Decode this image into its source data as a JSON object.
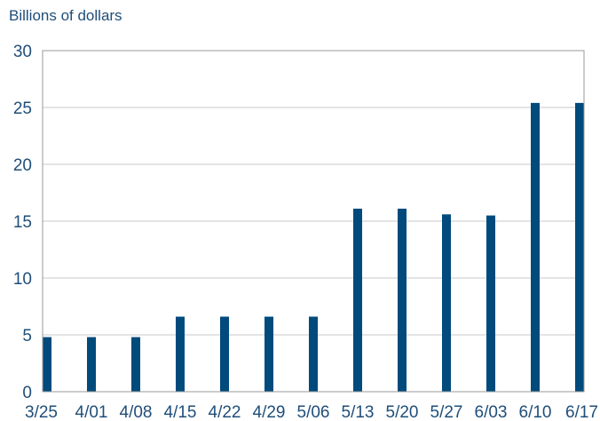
{
  "chart_data": {
    "type": "bar",
    "ylabel": "Billions of dollars",
    "categories": [
      "3/25",
      "4/01",
      "4/08",
      "4/15",
      "4/22",
      "4/29",
      "5/06",
      "5/13",
      "5/20",
      "5/27",
      "6/03",
      "6/10",
      "6/17"
    ],
    "values": [
      4.8,
      4.8,
      4.8,
      6.6,
      6.6,
      6.6,
      6.6,
      16.1,
      16.1,
      15.6,
      15.5,
      25.4,
      25.4
    ],
    "ylim": [
      0,
      30
    ],
    "yticks": [
      "0",
      "5",
      "10",
      "15",
      "20",
      "25",
      "30"
    ],
    "grid": true,
    "legend": "none",
    "bar_color": "#004a7c"
  }
}
